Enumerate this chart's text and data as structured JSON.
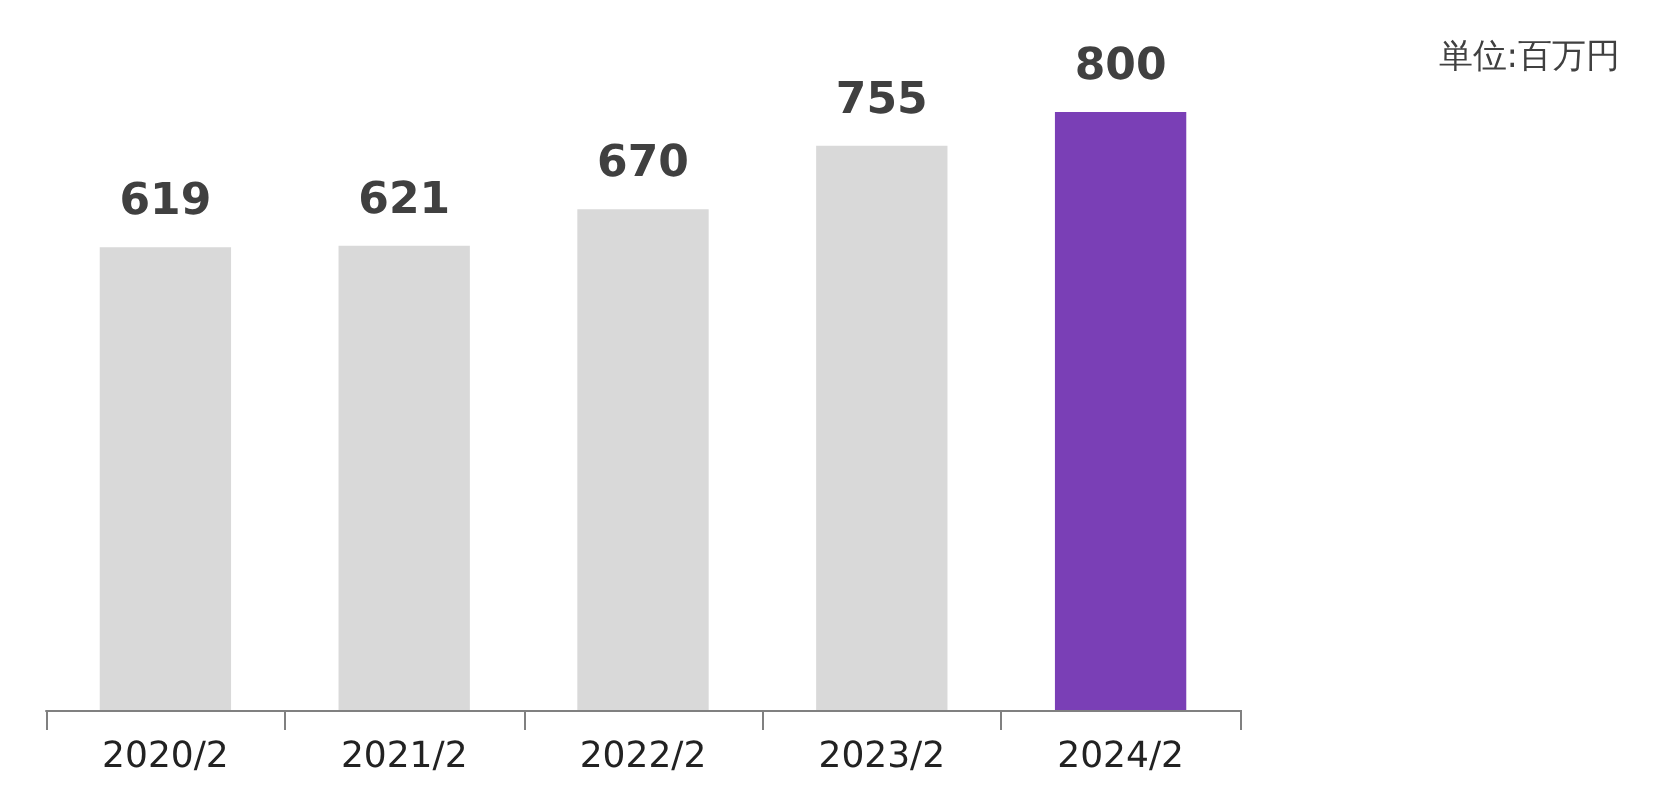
{
  "chart_data": {
    "type": "bar",
    "categories": [
      "2020/2",
      "2021/2",
      "2022/2",
      "2023/2",
      "2024/2"
    ],
    "values": [
      619,
      621,
      670,
      755,
      800
    ],
    "colors": [
      "#d9d9d9",
      "#d9d9d9",
      "#d9d9d9",
      "#d9d9d9",
      "#7a3fb6"
    ],
    "data_labels": true,
    "annotations": [
      "単位:百万円"
    ]
  }
}
